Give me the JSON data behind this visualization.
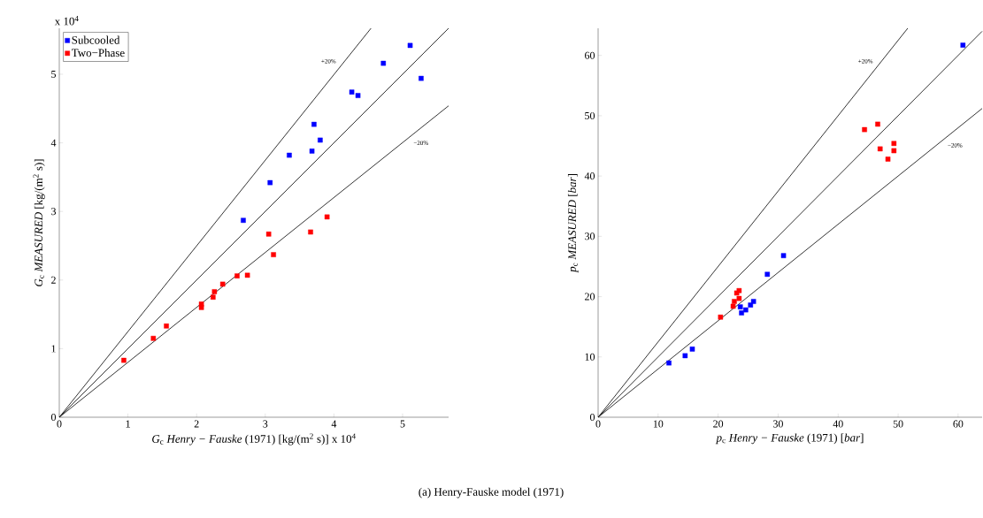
{
  "chart_data": [
    {
      "type": "scatter",
      "xlabel": "*G*$_{c}$ *Henry − Fauske* (1971)   [kg/(m$^{2}$ s)] x 10$^{4}$",
      "ylabel": "*G*$_{c}$ *MEASURED*   [kg/(m$^{2}$ s)]",
      "xlim": [
        0,
        5.67
      ],
      "ylim": [
        0,
        5.67
      ],
      "xticks": [
        0,
        1,
        2,
        3,
        4,
        5
      ],
      "yticks": [
        0,
        1,
        2,
        3,
        4,
        5
      ],
      "legend": "top left",
      "marker": "square",
      "series": [
        {
          "name": "Subcooled",
          "color": "#0000ff",
          "x": [
            2.68,
            3.07,
            3.35,
            3.68,
            3.8,
            3.71,
            4.26,
            4.35,
            4.72,
            5.11,
            5.27
          ],
          "values": [
            2.87,
            3.42,
            3.82,
            3.88,
            4.04,
            4.27,
            4.74,
            4.69,
            5.16,
            5.42,
            4.94
          ]
        },
        {
          "name": "Two−Phase",
          "color": "#ff0000",
          "x": [
            0.94,
            1.37,
            1.56,
            2.07,
            2.07,
            2.24,
            2.26,
            2.38,
            2.59,
            2.74,
            3.05,
            3.12,
            3.66,
            3.9
          ],
          "values": [
            0.83,
            1.15,
            1.33,
            1.65,
            1.6,
            1.75,
            1.83,
            1.94,
            2.06,
            2.07,
            2.67,
            2.37,
            2.7,
            2.92
          ]
        },
        {
          "type": "line",
          "name": "+20%",
          "color": "#000000",
          "marker": "none",
          "x": [
            0,
            4.54
          ],
          "values": [
            0,
            5.67
          ]
        },
        {
          "type": "line",
          "color": "#000000",
          "marker": "none",
          "x": [
            0,
            5.67
          ],
          "values": [
            0,
            5.67
          ]
        },
        {
          "type": "line",
          "name": "−20%",
          "color": "#000000",
          "marker": "none",
          "x": [
            0,
            5.67
          ],
          "values": [
            0,
            4.54
          ]
        }
      ],
      "annotations": [
        "x 10$^{4}$",
        "(a) Henry-Fauske model (1971)"
      ]
    },
    {
      "type": "scatter",
      "xlabel": "*p*$_{c}$ *Henry − Fauske* (1971)    [*bar*]",
      "ylabel": "*p*$_{c}$ *MEASURED*   [*bar*]",
      "xlim": [
        0,
        64
      ],
      "ylim": [
        0,
        64.5
      ],
      "xticks": [
        0,
        10,
        20,
        30,
        40,
        50,
        60
      ],
      "yticks": [
        0,
        10,
        20,
        30,
        40,
        50,
        60
      ],
      "marker": "square",
      "series": [
        {
          "color": "#0000ff",
          "x": [
            11.8,
            14.5,
            15.7,
            23.7,
            23.9,
            24.6,
            25.4,
            25.9,
            28.2,
            30.9,
            60.8
          ],
          "values": [
            9.0,
            10.2,
            11.3,
            18.3,
            17.3,
            17.8,
            18.6,
            19.2,
            23.7,
            26.8,
            61.7
          ]
        },
        {
          "color": "#ff0000",
          "x": [
            20.4,
            22.5,
            22.7,
            23.1,
            23.5,
            23.5,
            44.4,
            46.6,
            47.0,
            48.3,
            49.3,
            49.3
          ],
          "values": [
            16.6,
            18.4,
            19.2,
            20.6,
            21.0,
            19.7,
            47.7,
            48.6,
            44.5,
            42.8,
            45.4,
            44.2
          ]
        },
        {
          "type": "line",
          "name": "+20%",
          "color": "#000000",
          "marker": "none",
          "x": [
            0,
            51.6
          ],
          "values": [
            0,
            64.5
          ]
        },
        {
          "type": "line",
          "color": "#000000",
          "marker": "none",
          "x": [
            0,
            64
          ],
          "values": [
            0,
            64
          ]
        },
        {
          "type": "line",
          "name": "−20%",
          "color": "#000000",
          "marker": "none",
          "x": [
            0,
            64
          ],
          "values": [
            0,
            51.2
          ]
        }
      ]
    }
  ]
}
